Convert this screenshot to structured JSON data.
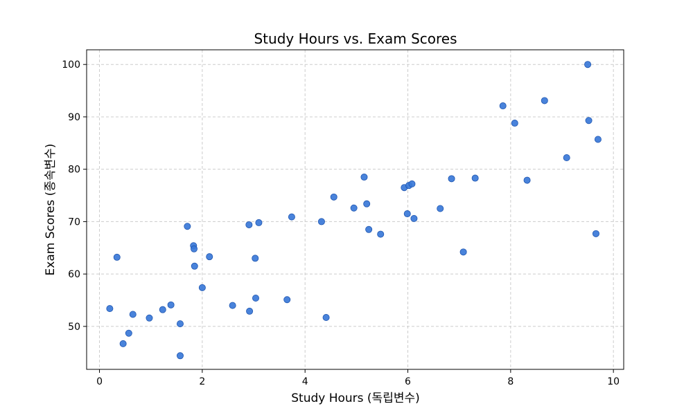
{
  "chart_data": {
    "type": "scatter",
    "title": "Study Hours vs. Exam Scores",
    "xlabel": "Study Hours (독립변수)",
    "ylabel": "Exam Scores (종속변수)",
    "xlim": [
      -0.25,
      10.2
    ],
    "ylim": [
      41.8,
      102.8
    ],
    "xticks": [
      0,
      2,
      4,
      6,
      8,
      10
    ],
    "yticks": [
      50,
      60,
      70,
      80,
      90,
      100
    ],
    "xtick_labels": [
      "0",
      "2",
      "4",
      "6",
      "8",
      "10"
    ],
    "ytick_labels": [
      "50",
      "60",
      "70",
      "80",
      "90",
      "100"
    ],
    "grid": true,
    "marker_color": "#3a78d8",
    "marker_edge_color": "#1f56b0",
    "points": [
      {
        "x": 0.2,
        "y": 53.4
      },
      {
        "x": 0.34,
        "y": 63.2
      },
      {
        "x": 0.46,
        "y": 46.7
      },
      {
        "x": 0.57,
        "y": 48.7
      },
      {
        "x": 0.65,
        "y": 52.3
      },
      {
        "x": 0.97,
        "y": 51.6
      },
      {
        "x": 1.23,
        "y": 53.2
      },
      {
        "x": 1.39,
        "y": 54.1
      },
      {
        "x": 1.57,
        "y": 50.5
      },
      {
        "x": 1.57,
        "y": 44.4
      },
      {
        "x": 1.71,
        "y": 69.1
      },
      {
        "x": 1.83,
        "y": 65.4
      },
      {
        "x": 1.84,
        "y": 64.8
      },
      {
        "x": 1.85,
        "y": 61.5
      },
      {
        "x": 2.0,
        "y": 57.4
      },
      {
        "x": 2.14,
        "y": 63.3
      },
      {
        "x": 2.59,
        "y": 54.0
      },
      {
        "x": 2.91,
        "y": 69.4
      },
      {
        "x": 2.92,
        "y": 52.9
      },
      {
        "x": 3.03,
        "y": 63.0
      },
      {
        "x": 3.04,
        "y": 55.4
      },
      {
        "x": 3.1,
        "y": 69.8
      },
      {
        "x": 3.65,
        "y": 55.1
      },
      {
        "x": 3.74,
        "y": 70.9
      },
      {
        "x": 4.32,
        "y": 70.0
      },
      {
        "x": 4.41,
        "y": 51.7
      },
      {
        "x": 4.56,
        "y": 74.7
      },
      {
        "x": 4.95,
        "y": 72.6
      },
      {
        "x": 5.15,
        "y": 78.5
      },
      {
        "x": 5.2,
        "y": 73.4
      },
      {
        "x": 5.24,
        "y": 68.5
      },
      {
        "x": 5.47,
        "y": 67.6
      },
      {
        "x": 5.93,
        "y": 76.5
      },
      {
        "x": 5.99,
        "y": 71.5
      },
      {
        "x": 6.02,
        "y": 76.9
      },
      {
        "x": 6.08,
        "y": 77.2
      },
      {
        "x": 6.12,
        "y": 70.6
      },
      {
        "x": 6.63,
        "y": 72.5
      },
      {
        "x": 6.85,
        "y": 78.2
      },
      {
        "x": 7.08,
        "y": 64.2
      },
      {
        "x": 7.31,
        "y": 78.3
      },
      {
        "x": 7.85,
        "y": 92.1
      },
      {
        "x": 8.08,
        "y": 88.8
      },
      {
        "x": 8.32,
        "y": 77.9
      },
      {
        "x": 8.66,
        "y": 93.1
      },
      {
        "x": 9.09,
        "y": 82.2
      },
      {
        "x": 9.5,
        "y": 100.0
      },
      {
        "x": 9.52,
        "y": 89.3
      },
      {
        "x": 9.66,
        "y": 67.7
      },
      {
        "x": 9.7,
        "y": 85.7
      }
    ]
  }
}
